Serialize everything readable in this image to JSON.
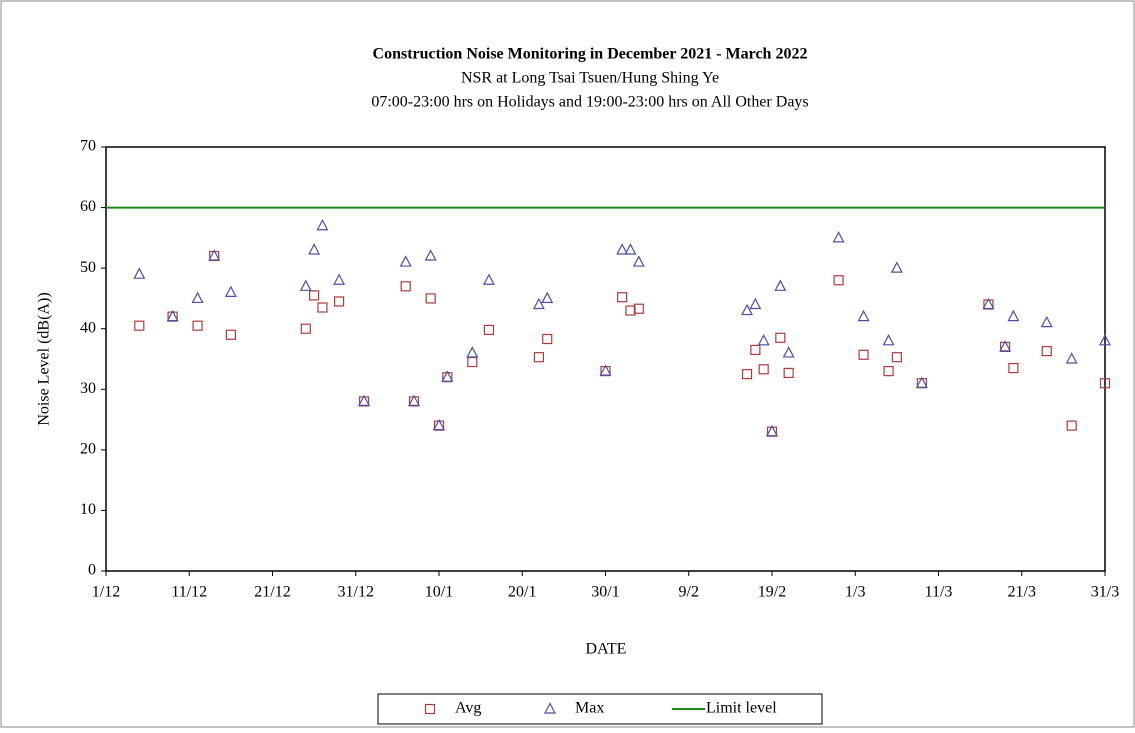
{
  "chart_data": {
    "type": "scatter",
    "title": "Construction  Noise Monitoring  in December 2021 - March 2022",
    "subtitle": "NSR at Long  Tsai Tsuen/Hung  Shing  Ye",
    "subtitle2": "07:00-23:00 hrs on Holidays and 19:00-23:00 hrs on All Other Days",
    "xlabel": "DATE",
    "ylabel": "Noise Level (dB(A))",
    "x": [
      4,
      8,
      11,
      13,
      15,
      24,
      25,
      26,
      28,
      31,
      36,
      37,
      39,
      40,
      41,
      44,
      46,
      52,
      53,
      60,
      62,
      63,
      64,
      77,
      78,
      79,
      80,
      81,
      82,
      88,
      91,
      94,
      95,
      98,
      106,
      108,
      109,
      113,
      116,
      120
    ],
    "series": [
      {
        "name": "Avg",
        "color": "#b03a3a",
        "marker": "square",
        "values": [
          40.5,
          42,
          40.5,
          52,
          39,
          40,
          45.5,
          43.5,
          44.5,
          28,
          47,
          28,
          45,
          24,
          32,
          34.5,
          39.8,
          35.3,
          38.3,
          33,
          45.2,
          43,
          43.3,
          32.5,
          36.5,
          33.3,
          23,
          38.5,
          32.7,
          48,
          35.7,
          33,
          35.3,
          31,
          44,
          37,
          33.5,
          36.3,
          24,
          31
        ]
      },
      {
        "name": "Max",
        "color": "#4a50a8",
        "marker": "triangle",
        "values": [
          49,
          42,
          45,
          52,
          46,
          47,
          53,
          57,
          48,
          28,
          51,
          28,
          52,
          24,
          32,
          36,
          48,
          44,
          45,
          33,
          53,
          53,
          51,
          43,
          44,
          38,
          23,
          47,
          36,
          55,
          42,
          38,
          50,
          31,
          44,
          37,
          42,
          41,
          35,
          38
        ]
      }
    ],
    "limit": {
      "name": "Limit level",
      "value": 60,
      "color": "#1a8a1a"
    },
    "xlim": [
      0,
      120
    ],
    "xticks": [
      {
        "value": 0,
        "label": "1/12"
      },
      {
        "value": 10,
        "label": "11/12"
      },
      {
        "value": 20,
        "label": "21/12"
      },
      {
        "value": 30,
        "label": "31/12"
      },
      {
        "value": 40,
        "label": "10/1"
      },
      {
        "value": 50,
        "label": "20/1"
      },
      {
        "value": 60,
        "label": "30/1"
      },
      {
        "value": 70,
        "label": "9/2"
      },
      {
        "value": 80,
        "label": "19/2"
      },
      {
        "value": 90,
        "label": "1/3"
      },
      {
        "value": 100,
        "label": "11/3"
      },
      {
        "value": 110,
        "label": "21/3"
      },
      {
        "value": 120,
        "label": "31/3"
      }
    ],
    "ylim": [
      0,
      70
    ],
    "yticks": [
      0,
      10,
      20,
      30,
      40,
      50,
      60,
      70
    ],
    "grid": false,
    "legend": "bottom"
  }
}
